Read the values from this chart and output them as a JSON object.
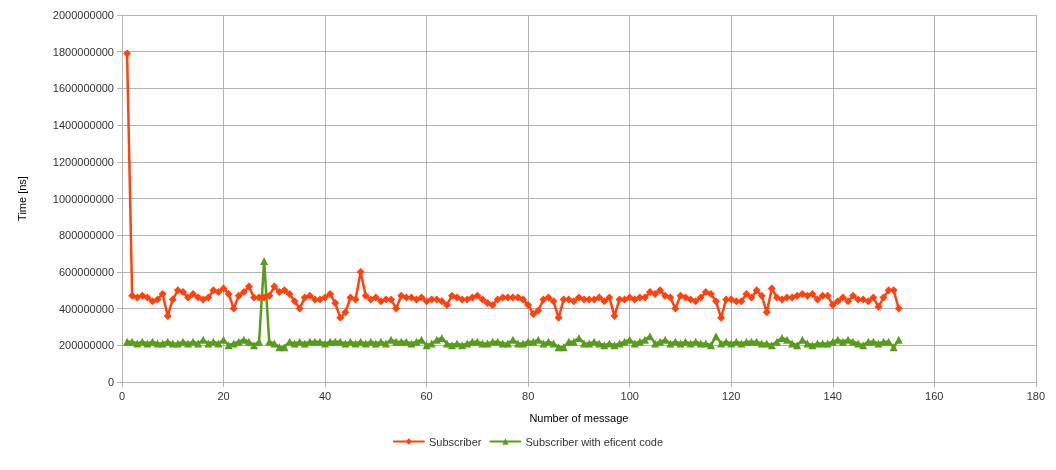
{
  "chart_data": {
    "type": "line",
    "xlabel": "Number of message",
    "ylabel": "Time [ns]",
    "x": [
      1,
      2,
      3,
      4,
      5,
      6,
      7,
      8,
      9,
      10,
      11,
      12,
      13,
      14,
      15,
      16,
      17,
      18,
      19,
      20,
      21,
      22,
      23,
      24,
      25,
      26,
      27,
      28,
      29,
      30,
      31,
      32,
      33,
      34,
      35,
      36,
      37,
      38,
      39,
      40,
      41,
      42,
      43,
      44,
      45,
      46,
      47,
      48,
      49,
      50,
      51,
      52,
      53,
      54,
      55,
      56,
      57,
      58,
      59,
      60,
      61,
      62,
      63,
      64,
      65,
      66,
      67,
      68,
      69,
      70,
      71,
      72,
      73,
      74,
      75,
      76,
      77,
      78,
      79,
      80,
      81,
      82,
      83,
      84,
      85,
      86,
      87,
      88,
      89,
      90,
      91,
      92,
      93,
      94,
      95,
      96,
      97,
      98,
      99,
      100,
      101,
      102,
      103,
      104,
      105,
      106,
      107,
      108,
      109,
      110,
      111,
      112,
      113,
      114,
      115,
      116,
      117,
      118,
      119,
      120,
      121,
      122,
      123,
      124,
      125,
      126,
      127,
      128,
      129,
      130,
      131,
      132,
      133,
      134,
      135,
      136,
      137,
      138,
      139,
      140,
      141,
      142,
      143,
      144,
      145,
      146,
      147,
      148,
      149,
      150,
      151,
      152,
      153
    ],
    "series": [
      {
        "name": "Subscriber",
        "color": "#ff420e",
        "marker": "diamond",
        "values": [
          1790000000,
          470000000,
          460000000,
          470000000,
          460000000,
          440000000,
          450000000,
          480000000,
          360000000,
          450000000,
          500000000,
          490000000,
          460000000,
          480000000,
          460000000,
          450000000,
          460000000,
          500000000,
          490000000,
          510000000,
          480000000,
          400000000,
          470000000,
          490000000,
          520000000,
          460000000,
          460000000,
          460000000,
          470000000,
          520000000,
          490000000,
          500000000,
          480000000,
          440000000,
          400000000,
          460000000,
          470000000,
          450000000,
          450000000,
          460000000,
          480000000,
          430000000,
          350000000,
          380000000,
          460000000,
          450000000,
          600000000,
          470000000,
          450000000,
          460000000,
          440000000,
          450000000,
          450000000,
          400000000,
          470000000,
          460000000,
          460000000,
          450000000,
          460000000,
          440000000,
          450000000,
          450000000,
          440000000,
          420000000,
          470000000,
          460000000,
          450000000,
          450000000,
          460000000,
          470000000,
          450000000,
          430000000,
          420000000,
          450000000,
          460000000,
          460000000,
          460000000,
          460000000,
          450000000,
          420000000,
          370000000,
          390000000,
          450000000,
          460000000,
          440000000,
          350000000,
          450000000,
          450000000,
          440000000,
          460000000,
          450000000,
          450000000,
          450000000,
          460000000,
          440000000,
          460000000,
          360000000,
          450000000,
          450000000,
          460000000,
          450000000,
          460000000,
          460000000,
          490000000,
          480000000,
          500000000,
          470000000,
          460000000,
          400000000,
          470000000,
          460000000,
          450000000,
          440000000,
          460000000,
          490000000,
          480000000,
          440000000,
          350000000,
          450000000,
          450000000,
          440000000,
          440000000,
          480000000,
          460000000,
          500000000,
          470000000,
          380000000,
          510000000,
          460000000,
          450000000,
          460000000,
          460000000,
          470000000,
          480000000,
          470000000,
          480000000,
          450000000,
          470000000,
          470000000,
          420000000,
          440000000,
          460000000,
          440000000,
          470000000,
          450000000,
          450000000,
          440000000,
          460000000,
          410000000,
          460000000,
          500000000,
          500000000,
          400000000
        ]
      },
      {
        "name": "Subscriber with eficent code",
        "color": "#579d1c",
        "marker": "triangle",
        "values": [
          220000000,
          220000000,
          210000000,
          220000000,
          210000000,
          220000000,
          210000000,
          210000000,
          220000000,
          210000000,
          210000000,
          220000000,
          210000000,
          220000000,
          210000000,
          230000000,
          210000000,
          220000000,
          210000000,
          230000000,
          200000000,
          210000000,
          220000000,
          230000000,
          220000000,
          200000000,
          220000000,
          660000000,
          220000000,
          210000000,
          190000000,
          190000000,
          220000000,
          210000000,
          220000000,
          210000000,
          220000000,
          220000000,
          220000000,
          210000000,
          220000000,
          220000000,
          220000000,
          210000000,
          220000000,
          210000000,
          220000000,
          210000000,
          220000000,
          210000000,
          220000000,
          210000000,
          230000000,
          220000000,
          220000000,
          220000000,
          210000000,
          220000000,
          230000000,
          200000000,
          210000000,
          230000000,
          240000000,
          210000000,
          200000000,
          210000000,
          200000000,
          210000000,
          220000000,
          220000000,
          210000000,
          210000000,
          220000000,
          220000000,
          210000000,
          210000000,
          230000000,
          210000000,
          210000000,
          220000000,
          220000000,
          230000000,
          210000000,
          220000000,
          210000000,
          190000000,
          190000000,
          220000000,
          220000000,
          240000000,
          210000000,
          210000000,
          220000000,
          210000000,
          200000000,
          210000000,
          200000000,
          210000000,
          220000000,
          230000000,
          210000000,
          220000000,
          230000000,
          250000000,
          210000000,
          220000000,
          230000000,
          210000000,
          220000000,
          210000000,
          220000000,
          210000000,
          220000000,
          210000000,
          210000000,
          200000000,
          250000000,
          210000000,
          220000000,
          210000000,
          220000000,
          210000000,
          220000000,
          220000000,
          220000000,
          210000000,
          210000000,
          200000000,
          220000000,
          240000000,
          230000000,
          210000000,
          200000000,
          230000000,
          210000000,
          200000000,
          210000000,
          210000000,
          210000000,
          220000000,
          230000000,
          220000000,
          230000000,
          220000000,
          210000000,
          200000000,
          220000000,
          220000000,
          210000000,
          220000000,
          220000000,
          190000000,
          230000000
        ]
      }
    ],
    "xlim": [
      0,
      180
    ],
    "xticks": [
      0,
      20,
      40,
      60,
      80,
      100,
      120,
      140,
      160,
      180
    ],
    "ylim": [
      0,
      2000000000
    ],
    "yticks": [
      0,
      200000000,
      400000000,
      600000000,
      800000000,
      1000000000,
      1200000000,
      1400000000,
      1600000000,
      1800000000,
      2000000000
    ],
    "grid": true,
    "legend": "bottom"
  }
}
